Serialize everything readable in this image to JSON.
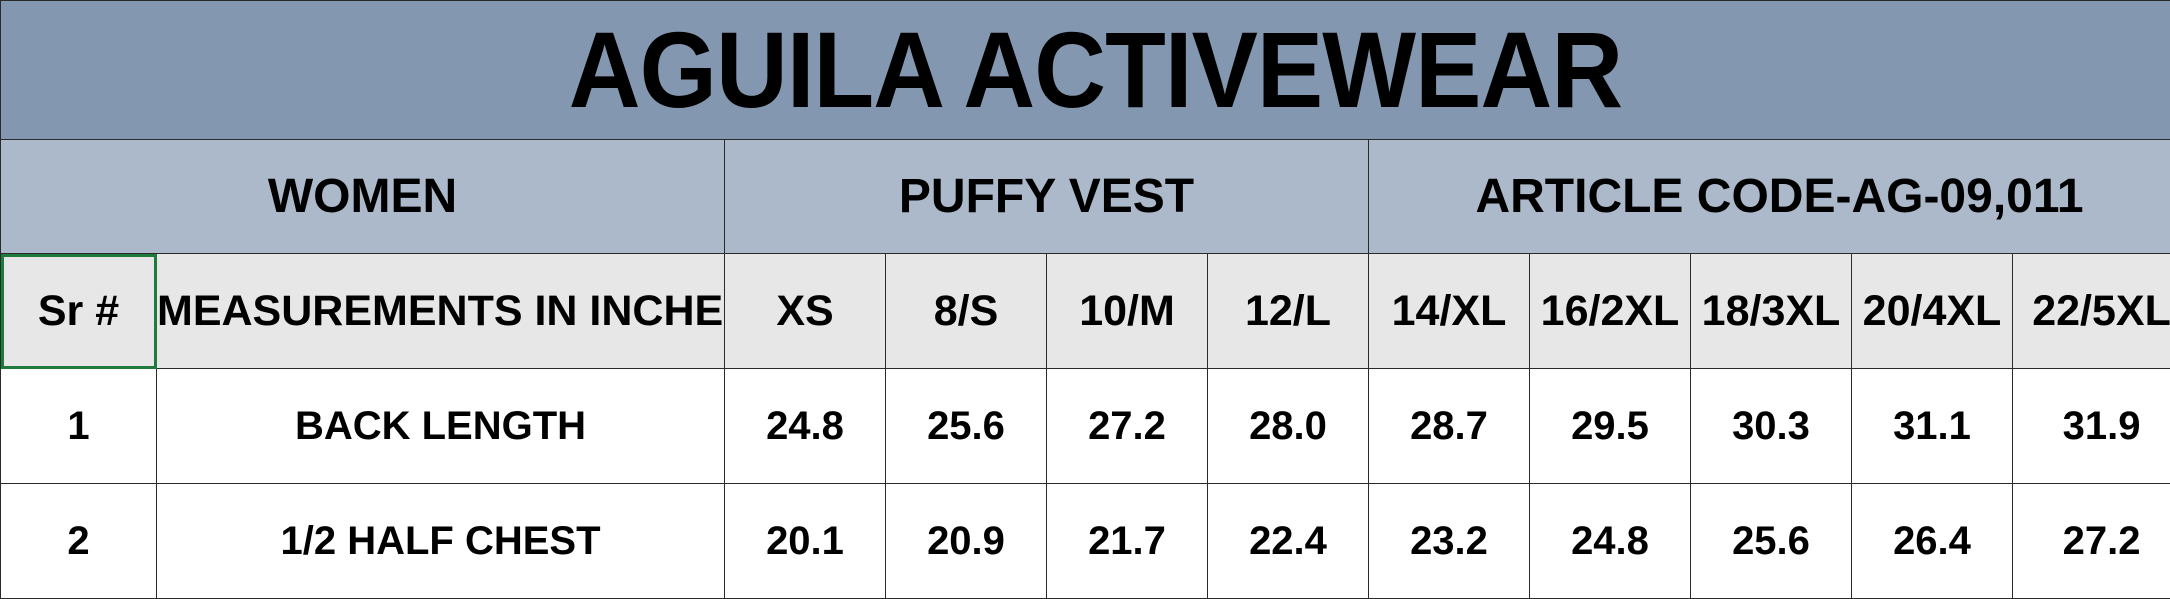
{
  "title": "AGUILA ACTIVEWEAR",
  "band": {
    "category": "WOMEN",
    "product": "PUFFY VEST",
    "article": "ARTICLE CODE-AG-09,011"
  },
  "headers": {
    "sr": "Sr #",
    "measurement": "MEASUREMENTS IN INCHES",
    "sizes": [
      "XS",
      "8/S",
      "10/M",
      "12/L",
      "14/XL",
      "16/2XL",
      "18/3XL",
      "20/4XL",
      "22/5XL"
    ]
  },
  "rows": [
    {
      "sr": "1",
      "name": "BACK LENGTH",
      "values": [
        "24.8",
        "25.6",
        "27.2",
        "28.0",
        "28.7",
        "29.5",
        "30.3",
        "31.1",
        "31.9"
      ]
    },
    {
      "sr": "2",
      "name": "1/2 HALF CHEST",
      "values": [
        "20.1",
        "20.9",
        "21.7",
        "22.4",
        "23.2",
        "24.8",
        "25.6",
        "26.4",
        "27.2"
      ]
    }
  ],
  "colors": {
    "title_bg": "#8497b0",
    "band_bg": "#acb9ca",
    "header_bg": "#e7e7e7",
    "selection": "#1f7a3d"
  }
}
